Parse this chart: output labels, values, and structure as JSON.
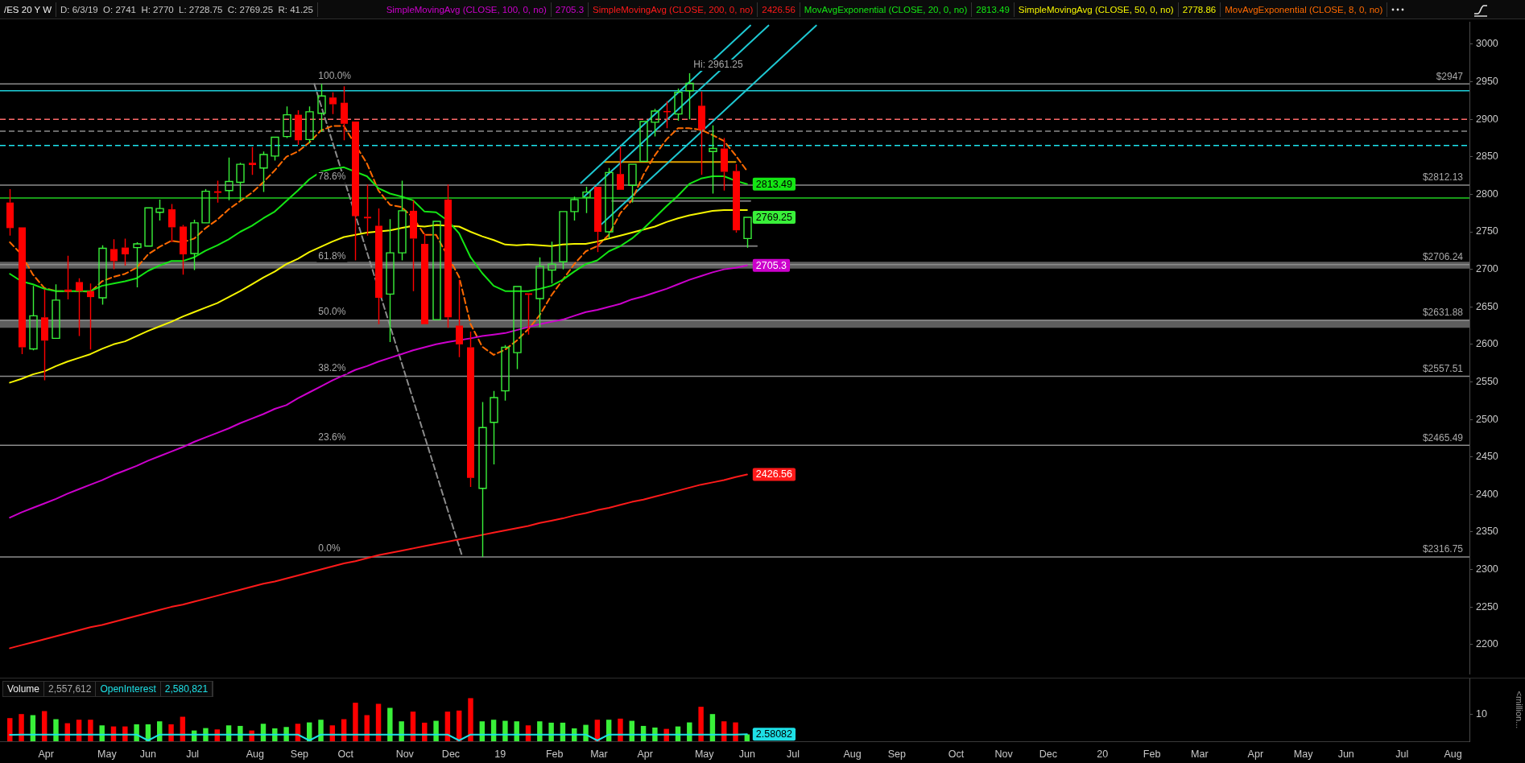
{
  "chart_data": [
    {
      "type": "candlestick",
      "title": "/ES 20 Y W",
      "subtitle": "D: 6/3/19  O: 2741  H: 2770  L: 2728.75  C: 2769.25  R: 41.25",
      "legend": "top",
      "tick_labels": "y",
      "x": [
        "2018-03-12",
        "2018-03-19",
        "2018-03-26",
        "2018-04-02",
        "2018-04-09",
        "2018-04-16",
        "2018-04-23",
        "2018-04-30",
        "2018-05-07",
        "2018-05-14",
        "2018-05-21",
        "2018-05-28",
        "2018-06-04",
        "2018-06-11",
        "2018-06-18",
        "2018-06-25",
        "2018-07-02",
        "2018-07-09",
        "2018-07-16",
        "2018-07-23",
        "2018-07-30",
        "2018-08-06",
        "2018-08-13",
        "2018-08-20",
        "2018-08-27",
        "2018-09-03",
        "2018-09-10",
        "2018-09-17",
        "2018-09-24",
        "2018-10-01",
        "2018-10-08",
        "2018-10-15",
        "2018-10-22",
        "2018-10-29",
        "2018-11-05",
        "2018-11-12",
        "2018-11-19",
        "2018-11-26",
        "2018-12-03",
        "2018-12-10",
        "2018-12-17",
        "2018-12-24",
        "2018-12-31",
        "2019-01-07",
        "2019-01-14",
        "2019-01-21",
        "2019-01-28",
        "2019-02-04",
        "2019-02-11",
        "2019-02-18",
        "2019-02-25",
        "2019-03-04",
        "2019-03-11",
        "2019-03-18",
        "2019-03-25",
        "2019-04-01",
        "2019-04-08",
        "2019-04-15",
        "2019-04-22",
        "2019-04-29",
        "2019-05-06",
        "2019-05-13",
        "2019-05-20",
        "2019-05-27",
        "2019-06-03"
      ],
      "ohlc": [
        [
          2789,
          2807,
          2745,
          2755
        ],
        [
          2756,
          2757,
          2587,
          2596
        ],
        [
          2594,
          2678,
          2592,
          2638
        ],
        [
          2636,
          2673,
          2552,
          2605
        ],
        [
          2608,
          2680,
          2607,
          2659
        ],
        [
          2673,
          2718,
          2660,
          2670
        ],
        [
          2683,
          2688,
          2611,
          2671
        ],
        [
          2671,
          2681,
          2593,
          2663
        ],
        [
          2662,
          2732,
          2653,
          2728
        ],
        [
          2727,
          2740,
          2700,
          2711
        ],
        [
          2729,
          2741,
          2705,
          2720
        ],
        [
          2729,
          2736,
          2676,
          2734
        ],
        [
          2731,
          2783,
          2730,
          2782
        ],
        [
          2776,
          2793,
          2765,
          2781
        ],
        [
          2780,
          2787,
          2736,
          2756
        ],
        [
          2757,
          2759,
          2693,
          2720
        ],
        [
          2721,
          2766,
          2699,
          2762
        ],
        [
          2762,
          2807,
          2761,
          2804
        ],
        [
          2804,
          2818,
          2789,
          2802
        ],
        [
          2805,
          2849,
          2792,
          2817
        ],
        [
          2816,
          2842,
          2791,
          2840
        ],
        [
          2842,
          2863,
          2826,
          2839
        ],
        [
          2835,
          2857,
          2803,
          2853
        ],
        [
          2851,
          2877,
          2845,
          2876
        ],
        [
          2877,
          2917,
          2875,
          2906
        ],
        [
          2906,
          2912,
          2866,
          2872
        ],
        [
          2873,
          2917,
          2868,
          2910
        ],
        [
          2908,
          2947,
          2883,
          2931
        ],
        [
          2929,
          2936,
          2907,
          2920
        ],
        [
          2922,
          2944,
          2872,
          2894
        ],
        [
          2897,
          2898,
          2712,
          2771
        ],
        [
          2770,
          2813,
          2745,
          2768
        ],
        [
          2758,
          2781,
          2627,
          2662
        ],
        [
          2667,
          2767,
          2603,
          2722
        ],
        [
          2722,
          2818,
          2712,
          2778
        ],
        [
          2778,
          2792,
          2671,
          2741
        ],
        [
          2734,
          2748,
          2626,
          2627
        ],
        [
          2633,
          2765,
          2632,
          2764
        ],
        [
          2793,
          2813,
          2622,
          2636
        ],
        [
          2625,
          2686,
          2583,
          2600
        ],
        [
          2596,
          2617,
          2410,
          2422
        ],
        [
          2408,
          2523,
          2316.75,
          2489
        ],
        [
          2496,
          2538,
          2440,
          2529
        ],
        [
          2538,
          2599,
          2525,
          2596
        ],
        [
          2589,
          2678,
          2567,
          2677
        ],
        [
          2668,
          2669,
          2613,
          2666
        ],
        [
          2661,
          2716,
          2623,
          2704
        ],
        [
          2699,
          2737,
          2681,
          2707
        ],
        [
          2710,
          2778,
          2700,
          2777
        ],
        [
          2777,
          2797,
          2765,
          2793
        ],
        [
          2796,
          2810,
          2775,
          2803
        ],
        [
          2810,
          2811,
          2723,
          2750
        ],
        [
          2750,
          2835,
          2742,
          2829
        ],
        [
          2827,
          2864,
          2805,
          2806
        ],
        [
          2812,
          2841,
          2789,
          2840
        ],
        [
          2844,
          2898,
          2843,
          2897
        ],
        [
          2896,
          2914,
          2877,
          2911
        ],
        [
          2911,
          2924,
          2888,
          2910
        ],
        [
          2907,
          2941,
          2898,
          2936
        ],
        [
          2938,
          2961.25,
          2900,
          2948
        ],
        [
          2918,
          2937,
          2826,
          2886
        ],
        [
          2857,
          2892,
          2801,
          2861
        ],
        [
          2861,
          2875,
          2805,
          2830
        ],
        [
          2831,
          2840,
          2749,
          2752
        ],
        [
          2741,
          2770,
          2728.75,
          2769.25
        ]
      ],
      "colors": [
        "#ff0000",
        "#ff0000",
        "#39f039",
        "#ff0000",
        "#39f039",
        "#ff0000",
        "#ff0000",
        "#ff0000",
        "#39f039",
        "#ff0000",
        "#ff0000",
        "#39f039",
        "#39f039",
        "#39f039",
        "#ff0000",
        "#ff0000",
        "#39f039",
        "#39f039",
        "#ff0000",
        "#39f039",
        "#39f039",
        "#ff0000",
        "#39f039",
        "#39f039",
        "#39f039",
        "#ff0000",
        "#39f039",
        "#39f039",
        "#ff0000",
        "#ff0000",
        "#ff0000",
        "#ff0000",
        "#ff0000",
        "#39f039",
        "#39f039",
        "#ff0000",
        "#ff0000",
        "#39f039",
        "#ff0000",
        "#ff0000",
        "#ff0000",
        "#39f039",
        "#39f039",
        "#39f039",
        "#39f039",
        "#ff0000",
        "#39f039",
        "#39f039",
        "#39f039",
        "#39f039",
        "#39f039",
        "#ff0000",
        "#39f039",
        "#ff0000",
        "#39f039",
        "#39f039",
        "#39f039",
        "#ff0000",
        "#39f039",
        "#39f039",
        "#ff0000",
        "#39f039",
        "#ff0000",
        "#ff0000",
        "#39f039"
      ],
      "xlim": [
        "2018-03-06",
        "2020-08-15"
      ],
      "ylim": [
        2160,
        3030
      ],
      "yticks": [
        2200,
        2250,
        2300,
        2350,
        2400,
        2450,
        2500,
        2550,
        2600,
        2650,
        2700,
        2750,
        2800,
        2850,
        2900,
        2950,
        3000
      ],
      "series": [
        {
          "name": "SimpleMovingAvg (CLOSE, 100, 0, no)",
          "type": "line",
          "color": "#cc00cc",
          "values": [
            2369,
            2376,
            2382,
            2388,
            2394,
            2401,
            2407,
            2413,
            2419,
            2426,
            2432,
            2438,
            2445,
            2451,
            2457,
            2463,
            2470,
            2476,
            2482,
            2488,
            2495,
            2501,
            2507,
            2514,
            2519,
            2528,
            2536,
            2544,
            2552,
            2559,
            2566,
            2571,
            2577,
            2582,
            2587,
            2592,
            2596,
            2600,
            2603,
            null,
            2608,
            2611,
            2613,
            2615,
            2619,
            2623,
            2627,
            2630,
            2633,
            2638,
            2643,
            2646,
            2650,
            2654,
            2660,
            2664,
            2669,
            2674,
            2680,
            2686,
            2691,
            2696,
            2700,
            2702,
            2705.3
          ]
        },
        {
          "name": "SimpleMovingAvg (CLOSE, 200, 0, no)",
          "type": "line",
          "color": "#ff1a1a",
          "values": [
            2195,
            2199,
            2203,
            2207,
            2211,
            2215,
            2219,
            2223,
            2226,
            2230,
            2234,
            2238,
            2242,
            2246,
            2250,
            2253,
            2257,
            2261,
            2265,
            2269,
            2273,
            2277,
            2281,
            2284,
            2288,
            2292,
            2296,
            2300,
            2304,
            2308,
            2311,
            2315,
            2319,
            2322,
            2325,
            2328,
            2331,
            2334,
            2337,
            2340,
            2343,
            2346,
            2349,
            2352,
            2355,
            2358,
            2362,
            2365,
            2368,
            2372,
            2375,
            2379,
            2382,
            2386,
            2390,
            2393,
            2397,
            2401,
            2405,
            2409,
            2413,
            2416,
            2419,
            2423,
            2426.56
          ]
        },
        {
          "name": "MovAvgExponential (CLOSE, 20, 0, no)",
          "type": "line",
          "color": "#14e614",
          "values": [
            2694,
            2684,
            2680,
            2674,
            2671,
            2671,
            2671,
            2671,
            2678,
            2681,
            2684,
            2688,
            2698,
            2705,
            2711,
            2711,
            2716,
            2725,
            2732,
            2740,
            2750,
            2758,
            2768,
            2777,
            2791,
            2805,
            2820,
            2830,
            2834,
            2836,
            null,
            2824,
            2808,
            2801,
            2797,
            2792,
            2777,
            2776,
            2765,
            2748,
            2716,
            2695,
            2678,
            2671,
            2671,
            2671,
            2674,
            2678,
            2686,
            2697,
            2707,
            2712,
            2724,
            2731,
            2741,
            2754,
            2769,
            2784,
            2798,
            2814,
            2821,
            2824,
            2824,
            2818,
            2813.49
          ]
        },
        {
          "name": "SimpleMovingAvg (CLOSE, 50, 0, no)",
          "type": "line",
          "color": "#f5f500",
          "values": [
            2549,
            2554,
            2560,
            2564,
            2571,
            2577,
            2582,
            2587,
            2594,
            2600,
            2604,
            2611,
            2618,
            2624,
            2630,
            2637,
            2643,
            2649,
            2655,
            2663,
            2671,
            2680,
            2689,
            2697,
            2707,
            2714,
            2723,
            2730,
            2737,
            2743,
            2746,
            2749,
            null,
            2752,
            2755,
            2758,
            2757,
            2759,
            2758,
            2757,
            2750,
            2744,
            2739,
            2733,
            2732,
            2733,
            2732,
            2731,
            2733,
            2734,
            2734,
            2737,
            2741,
            2745,
            2749,
            2753,
            2757,
            2763,
            2768,
            2772,
            2775,
            2778,
            2779,
            2779,
            2778.86
          ]
        },
        {
          "name": "MovAvgExponential (CLOSE, 8, 0, no)",
          "type": "line",
          "color": "#ff6a00",
          "line_style": "dashed",
          "values": [
            2736,
            2720,
            2693,
            2675,
            2671,
            2671,
            2671,
            2670,
            2684,
            2690,
            2694,
            2702,
            2720,
            2730,
            2738,
            2736,
            2741,
            2755,
            2766,
            2780,
            2791,
            2802,
            2816,
            2832,
            2850,
            2857,
            2869,
            2885,
            2891,
            2891,
            null,
            2841,
            2805,
            2786,
            2783,
            2769,
            2746,
            2746,
            null,
            2690,
            2627,
            2597,
            2586,
            2593,
            2605,
            2620,
            2639,
            2665,
            2686,
            2707,
            2724,
            2731,
            2746,
            2775,
            2792,
            2826,
            2852,
            2873,
            2888,
            2888,
            2886,
            2879,
            2871,
            2852,
            2831
          ]
        },
        {
          "type": "line",
          "color": "#1ec8d2",
          "x": [
            "2019-02-22",
            "2019-06-05"
          ],
          "values": [
            2815,
            3025
          ]
        },
        {
          "type": "line",
          "color": "#1ec8d2",
          "x": [
            "2019-02-24",
            "2019-06-16"
          ],
          "values": [
            2797,
            3025
          ]
        },
        {
          "type": "line",
          "color": "#1ec8d2",
          "x": [
            "2019-03-06",
            "2019-07-15"
          ],
          "values": [
            2759,
            3025
          ]
        },
        {
          "type": "line",
          "color": "#8c8c8c",
          "line_style": "dashed",
          "x": [
            "2018-09-13",
            "2018-12-12"
          ],
          "values": [
            2947,
            2316.75
          ]
        },
        {
          "type": "line",
          "color": "#e0a000",
          "x": [
            "2019-03-08",
            "2019-05-27"
          ],
          "values": [
            2843,
            2843
          ]
        },
        {
          "type": "line",
          "color": "#777777",
          "x": [
            "2019-03-13",
            "2019-06-05"
          ],
          "values": [
            2791,
            2791
          ]
        },
        {
          "type": "line",
          "color": "#777777",
          "x": [
            "2019-03-04",
            "2019-06-09"
          ],
          "values": [
            2731,
            2731
          ]
        }
      ],
      "ref_lines": [
        {
          "axis": "y",
          "value": 2938,
          "color": "#1ed2dc"
        },
        {
          "axis": "y",
          "value": 2900,
          "color": "#ff6a6a",
          "line_style": "dashed"
        },
        {
          "axis": "y",
          "value": 2884,
          "color": "#8c8c8c",
          "line_style": "dashed"
        },
        {
          "axis": "y",
          "value": 2865,
          "color": "#1ee6f0",
          "line_style": "dashed"
        },
        {
          "axis": "y",
          "value": 2795,
          "color": "#22cc22"
        },
        {
          "axis": "y",
          "value": 2947,
          "label": "$2947",
          "color": "#8c8c8c"
        },
        {
          "axis": "y",
          "value": 2812.13,
          "label": "$2812.13",
          "color": "#8c8c8c"
        },
        {
          "axis": "y",
          "value": 2706.24,
          "label": "$2706.24",
          "color": "#8c8c8c"
        },
        {
          "axis": "y",
          "value": 2631.88,
          "label": "$2631.88",
          "color": "#8c8c8c"
        },
        {
          "axis": "y",
          "value": 2557.51,
          "label": "$2557.51",
          "color": "#8c8c8c"
        },
        {
          "axis": "y",
          "value": 2465.49,
          "label": "$2465.49",
          "color": "#8c8c8c"
        },
        {
          "axis": "y",
          "value": 2316.75,
          "label": "$2316.75",
          "color": "#8c8c8c"
        }
      ],
      "bands": [
        {
          "axis": "y",
          "from": 2701,
          "to": 2710,
          "color": "#5e5e5e"
        },
        {
          "axis": "y",
          "from": 2622,
          "to": 2633,
          "color": "#5e5e5e"
        }
      ],
      "annotations": [
        "2705.3",
        "2426.56",
        "2813.49",
        "2778.86",
        {
          "text": "100.0%",
          "x": "2018-09-13",
          "y": 2947
        },
        {
          "text": "78.6%",
          "x": "2018-09-13",
          "y": 2812.13
        },
        {
          "text": "61.8%",
          "x": "2018-09-13",
          "y": 2706.24
        },
        {
          "text": "50.0%",
          "x": "2018-09-13",
          "y": 2631.88
        },
        {
          "text": "38.2%",
          "x": "2018-09-13",
          "y": 2557.51
        },
        {
          "text": "23.6%",
          "x": "2018-09-13",
          "y": 2465.49
        },
        {
          "text": "0.0%",
          "x": "2018-09-13",
          "y": 2316.75
        },
        {
          "text": "Hi: 2961.25",
          "x": "2019-04-29",
          "y": 2961.25
        },
        {
          "text": "2813.49",
          "x": "2019-06-03",
          "y": 2813.49
        },
        {
          "text": "2769.25",
          "x": "2019-06-03",
          "y": 2769.25
        },
        {
          "text": "2705.3",
          "x": "2019-06-03",
          "y": 2705.3
        },
        {
          "text": "2426.56",
          "x": "2019-06-03",
          "y": 2426.56
        }
      ]
    },
    {
      "type": "bar",
      "legend": "top left",
      "ylabel": "<million...",
      "x": [
        "2018-03-12",
        "2018-03-19",
        "2018-03-26",
        "2018-04-02",
        "2018-04-09",
        "2018-04-16",
        "2018-04-23",
        "2018-04-30",
        "2018-05-07",
        "2018-05-14",
        "2018-05-21",
        "2018-05-28",
        "2018-06-04",
        "2018-06-11",
        "2018-06-18",
        "2018-06-25",
        "2018-07-02",
        "2018-07-09",
        "2018-07-16",
        "2018-07-23",
        "2018-07-30",
        "2018-08-06",
        "2018-08-13",
        "2018-08-20",
        "2018-08-27",
        "2018-09-03",
        "2018-09-10",
        "2018-09-17",
        "2018-09-24",
        "2018-10-01",
        "2018-10-08",
        "2018-10-15",
        "2018-10-22",
        "2018-10-29",
        "2018-11-05",
        "2018-11-12",
        "2018-11-19",
        "2018-11-26",
        "2018-12-03",
        "2018-12-10",
        "2018-12-17",
        "2018-12-24",
        "2018-12-31",
        "2019-01-07",
        "2019-01-14",
        "2019-01-21",
        "2019-01-28",
        "2019-02-04",
        "2019-02-11",
        "2019-02-18",
        "2019-02-25",
        "2019-03-04",
        "2019-03-11",
        "2019-03-18",
        "2019-03-25",
        "2019-04-01",
        "2019-04-08",
        "2019-04-15",
        "2019-04-22",
        "2019-04-29",
        "2019-05-06",
        "2019-05-13",
        "2019-05-20",
        "2019-05-27",
        "2019-06-03"
      ],
      "xlim": [
        "2018-03-06",
        "2020-08-15"
      ],
      "xticks": [
        {
          "value": "2018-04-03",
          "label": "Apr"
        },
        {
          "value": "2018-05-10",
          "label": "May"
        },
        {
          "value": "2018-06-04",
          "label": "Jun"
        },
        {
          "value": "2018-07-01",
          "label": "Jul"
        },
        {
          "value": "2018-08-08",
          "label": "Aug"
        },
        {
          "value": "2018-09-04",
          "label": "Sep"
        },
        {
          "value": "2018-10-02",
          "label": "Oct"
        },
        {
          "value": "2018-11-07",
          "label": "Nov"
        },
        {
          "value": "2018-12-05",
          "label": "Dec"
        },
        {
          "value": "2019-01-04",
          "label": "19"
        },
        {
          "value": "2019-02-06",
          "label": "Feb"
        },
        {
          "value": "2019-03-05",
          "label": "Mar"
        },
        {
          "value": "2019-04-02",
          "label": "Apr"
        },
        {
          "value": "2019-05-08",
          "label": "May"
        },
        {
          "value": "2019-06-03",
          "label": "Jun"
        },
        {
          "value": "2019-07-01",
          "label": "Jul"
        },
        {
          "value": "2019-08-06",
          "label": "Aug"
        },
        {
          "value": "2019-09-02",
          "label": "Sep"
        },
        {
          "value": "2019-10-08",
          "label": "Oct"
        },
        {
          "value": "2019-11-06",
          "label": "Nov"
        },
        {
          "value": "2019-12-03",
          "label": "Dec"
        },
        {
          "value": "2020-01-05",
          "label": "20"
        },
        {
          "value": "2020-02-04",
          "label": "Feb"
        },
        {
          "value": "2020-03-04",
          "label": "Mar"
        },
        {
          "value": "2020-04-07",
          "label": "Apr"
        },
        {
          "value": "2020-05-06",
          "label": "May"
        },
        {
          "value": "2020-06-01",
          "label": "Jun"
        },
        {
          "value": "2020-07-05",
          "label": "Jul"
        },
        {
          "value": "2020-08-05",
          "label": "Aug"
        }
      ],
      "ylim": [
        0,
        23.3
      ],
      "yticks": [
        10
      ],
      "annotations": [
        "2,557,612",
        "2,580,821",
        {
          "text": "2.58082",
          "x": "2019-06-03",
          "y": 2.580821
        }
      ],
      "series": [
        {
          "name": "Volume",
          "type": "bar",
          "colors": [
            "#ff0000",
            "#ff0000",
            "#39f039",
            "#ff0000",
            "#39f039",
            "#ff0000",
            "#ff0000",
            "#ff0000",
            "#39f039",
            "#ff0000",
            "#ff0000",
            "#39f039",
            "#39f039",
            "#39f039",
            "#ff0000",
            "#ff0000",
            "#39f039",
            "#39f039",
            "#ff0000",
            "#39f039",
            "#39f039",
            "#ff0000",
            "#39f039",
            "#39f039",
            "#39f039",
            "#ff0000",
            "#39f039",
            "#39f039",
            "#ff0000",
            "#ff0000",
            "#ff0000",
            "#ff0000",
            "#ff0000",
            "#39f039",
            "#39f039",
            "#ff0000",
            "#ff0000",
            "#39f039",
            "#ff0000",
            "#ff0000",
            "#ff0000",
            "#39f039",
            "#39f039",
            "#39f039",
            "#39f039",
            "#ff0000",
            "#39f039",
            "#39f039",
            "#39f039",
            "#39f039",
            "#39f039",
            "#ff0000",
            "#39f039",
            "#ff0000",
            "#39f039",
            "#39f039",
            "#39f039",
            "#ff0000",
            "#39f039",
            "#39f039",
            "#ff0000",
            "#39f039",
            "#ff0000",
            "#ff0000",
            "#39f039"
          ],
          "values": [
            8.6,
            10.1,
            9.7,
            11.2,
            8.2,
            6.7,
            8,
            8,
            5.9,
            5.5,
            5.5,
            6.3,
            6.3,
            7.4,
            6.3,
            9.1,
            4,
            4.9,
            4.4,
            5.9,
            5.7,
            4,
            6.5,
            4.8,
            5.3,
            6.5,
            7,
            8,
            5.9,
            8.2,
            14.3,
            9.7,
            13.9,
            12.4,
            7.4,
            11,
            6.9,
            7.6,
            11,
            11.4,
            16,
            7.4,
            8,
            7.6,
            7.4,
            5.9,
            7.4,
            6.9,
            6.9,
            4.8,
            6.1,
            8,
            8,
            8.4,
            7.6,
            5.7,
            5.1,
            4.6,
            5.5,
            7,
            12.8,
            10.1,
            7.4,
            7,
            2.557612
          ]
        },
        {
          "name": "OpenInterest",
          "type": "line",
          "color": "#1ee0e6",
          "values": [
            2.4,
            2.5,
            2.5,
            2.5,
            2.5,
            2.5,
            2.5,
            2.5,
            2.5,
            2.5,
            2.5,
            2.5,
            0.3,
            2.5,
            2.5,
            2.5,
            2.5,
            2.5,
            2.5,
            2.5,
            2.5,
            2.5,
            2.5,
            2.5,
            2.5,
            2.5,
            0.3,
            2.5,
            2.5,
            2.5,
            2.5,
            2.5,
            2.5,
            2.5,
            2.5,
            2.5,
            2.5,
            2.5,
            2.5,
            0.3,
            2.5,
            2.5,
            2.5,
            2.5,
            2.5,
            2.5,
            2.5,
            2.5,
            2.5,
            2.5,
            2.5,
            0.3,
            2.5,
            2.5,
            2.5,
            2.5,
            2.5,
            2.5,
            2.5,
            2.5,
            2.5,
            2.5,
            2.5,
            2.5,
            2.580821
          ]
        }
      ]
    }
  ]
}
